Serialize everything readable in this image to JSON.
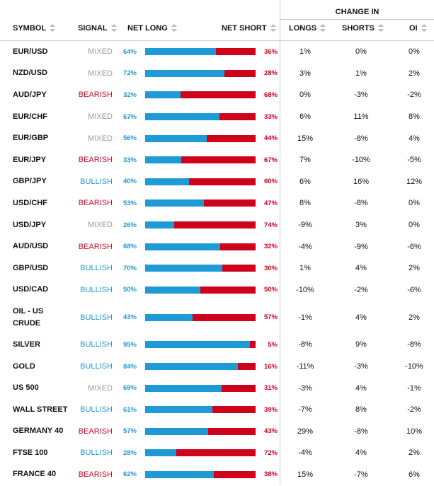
{
  "header": {
    "change_in": "CHANGE IN",
    "symbol": "SYMBOL",
    "signal": "SIGNAL",
    "net_long": "NET LONG",
    "net_short": "NET SHORT",
    "longs": "LONGS",
    "shorts": "SHORTS",
    "oi": "OI"
  },
  "rows": [
    {
      "symbol": "EUR/USD",
      "signal": "MIXED",
      "net_long": "64%",
      "net_short": "36%",
      "longs": "1%",
      "shorts": "0%",
      "oi": "0%"
    },
    {
      "symbol": "NZD/USD",
      "signal": "MIXED",
      "net_long": "72%",
      "net_short": "28%",
      "longs": "3%",
      "shorts": "1%",
      "oi": "2%"
    },
    {
      "symbol": "AUD/JPY",
      "signal": "BEARISH",
      "net_long": "32%",
      "net_short": "68%",
      "longs": "0%",
      "shorts": "-3%",
      "oi": "-2%"
    },
    {
      "symbol": "EUR/CHF",
      "signal": "MIXED",
      "net_long": "67%",
      "net_short": "33%",
      "longs": "6%",
      "shorts": "11%",
      "oi": "8%"
    },
    {
      "symbol": "EUR/GBP",
      "signal": "MIXED",
      "net_long": "56%",
      "net_short": "44%",
      "longs": "15%",
      "shorts": "-8%",
      "oi": "4%"
    },
    {
      "symbol": "EUR/JPY",
      "signal": "BEARISH",
      "net_long": "33%",
      "net_short": "67%",
      "longs": "7%",
      "shorts": "-10%",
      "oi": "-5%"
    },
    {
      "symbol": "GBP/JPY",
      "signal": "BULLISH",
      "net_long": "40%",
      "net_short": "60%",
      "longs": "6%",
      "shorts": "16%",
      "oi": "12%"
    },
    {
      "symbol": "USD/CHF",
      "signal": "BEARISH",
      "net_long": "53%",
      "net_short": "47%",
      "longs": "8%",
      "shorts": "-8%",
      "oi": "0%"
    },
    {
      "symbol": "USD/JPY",
      "signal": "MIXED",
      "net_long": "26%",
      "net_short": "74%",
      "longs": "-9%",
      "shorts": "3%",
      "oi": "0%"
    },
    {
      "symbol": "AUD/USD",
      "signal": "BEARISH",
      "net_long": "68%",
      "net_short": "32%",
      "longs": "-4%",
      "shorts": "-9%",
      "oi": "-6%"
    },
    {
      "symbol": "GBP/USD",
      "signal": "BULLISH",
      "net_long": "70%",
      "net_short": "30%",
      "longs": "1%",
      "shorts": "4%",
      "oi": "2%"
    },
    {
      "symbol": "USD/CAD",
      "signal": "BULLISH",
      "net_long": "50%",
      "net_short": "50%",
      "longs": "-10%",
      "shorts": "-2%",
      "oi": "-6%"
    },
    {
      "symbol": "OIL - US CRUDE",
      "signal": "BULLISH",
      "net_long": "43%",
      "net_short": "57%",
      "longs": "-1%",
      "shorts": "4%",
      "oi": "2%"
    },
    {
      "symbol": "SILVER",
      "signal": "BULLISH",
      "net_long": "95%",
      "net_short": "5%",
      "longs": "-8%",
      "shorts": "9%",
      "oi": "-8%"
    },
    {
      "symbol": "GOLD",
      "signal": "BULLISH",
      "net_long": "84%",
      "net_short": "16%",
      "longs": "-11%",
      "shorts": "-3%",
      "oi": "-10%"
    },
    {
      "symbol": "US 500",
      "signal": "MIXED",
      "net_long": "69%",
      "net_short": "31%",
      "longs": "-3%",
      "shorts": "4%",
      "oi": "-1%"
    },
    {
      "symbol": "WALL STREET",
      "signal": "BULLISH",
      "net_long": "61%",
      "net_short": "39%",
      "longs": "-7%",
      "shorts": "8%",
      "oi": "-2%"
    },
    {
      "symbol": "GERMANY 40",
      "signal": "BEARISH",
      "net_long": "57%",
      "net_short": "43%",
      "longs": "29%",
      "shorts": "-8%",
      "oi": "10%"
    },
    {
      "symbol": "FTSE 100",
      "signal": "BULLISH",
      "net_long": "28%",
      "net_short": "72%",
      "longs": "-4%",
      "shorts": "4%",
      "oi": "2%"
    },
    {
      "symbol": "FRANCE 40",
      "signal": "BEARISH",
      "net_long": "62%",
      "net_short": "38%",
      "longs": "15%",
      "shorts": "-7%",
      "oi": "6%"
    }
  ],
  "colors": {
    "long": "#1e9ad6",
    "short": "#d0021b",
    "mixed": "#999999",
    "bearish": "#c8102e",
    "bullish": "#1e9ad6"
  }
}
